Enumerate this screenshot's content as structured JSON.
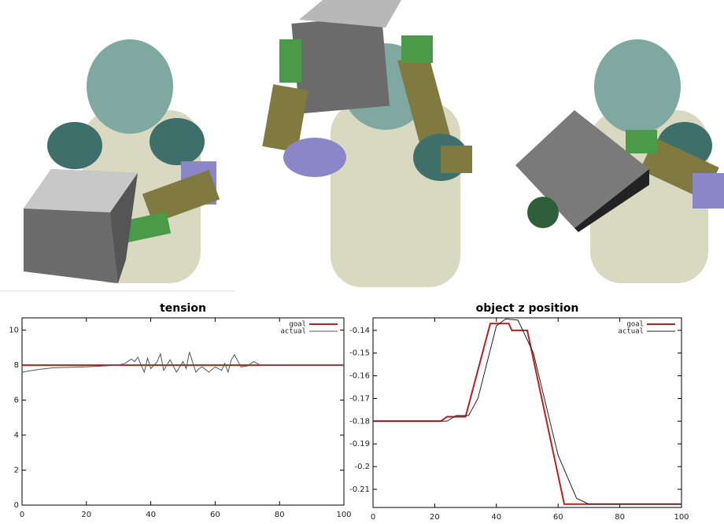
{
  "chart_data": [
    {
      "type": "line",
      "title": "tension",
      "xlim": [
        0,
        100
      ],
      "xticks": [
        0,
        20,
        40,
        60,
        80,
        100
      ],
      "ylim": [
        0,
        10.7
      ],
      "yticks": [
        0,
        2,
        4,
        6,
        8,
        10
      ],
      "grid": false,
      "legend": "upper right",
      "series": [
        {
          "name": "goal",
          "color": "#b22222",
          "x": [
            0,
            100
          ],
          "values": [
            8,
            8
          ]
        },
        {
          "name": "actual",
          "color": "#555555",
          "x": [
            0,
            5,
            10,
            20,
            30,
            32,
            34,
            35,
            36,
            37,
            38,
            39,
            40,
            42,
            43,
            44,
            46,
            48,
            50,
            51,
            52,
            54,
            55,
            56,
            58,
            60,
            62,
            63,
            64,
            65,
            66,
            68,
            70,
            72,
            74,
            76,
            80,
            90,
            100
          ],
          "values": [
            7.6,
            7.75,
            7.85,
            7.9,
            8.0,
            8.1,
            8.35,
            8.2,
            8.45,
            8.0,
            7.6,
            8.4,
            7.8,
            8.2,
            8.65,
            7.7,
            8.3,
            7.6,
            8.2,
            7.8,
            8.75,
            7.6,
            7.8,
            7.9,
            7.6,
            7.9,
            7.7,
            8.1,
            7.6,
            8.3,
            8.6,
            7.9,
            7.95,
            8.2,
            8.0,
            8.0,
            8.0,
            8.0,
            8.0
          ]
        }
      ]
    },
    {
      "type": "line",
      "title": "object z position",
      "xlim": [
        0,
        100
      ],
      "xticks": [
        0,
        20,
        40,
        60,
        80,
        100
      ],
      "ylim": [
        -0.218,
        -0.1345
      ],
      "yticks": [
        -0.14,
        -0.15,
        -0.16,
        -0.17,
        -0.18,
        -0.19,
        -0.2,
        -0.21
      ],
      "grid": false,
      "legend": "upper right",
      "series": [
        {
          "name": "goal",
          "color": "#b22222",
          "x": [
            0,
            22,
            24,
            30,
            38,
            44,
            45,
            50,
            62,
            100
          ],
          "values": [
            -0.18,
            -0.18,
            -0.178,
            -0.178,
            -0.137,
            -0.137,
            -0.14,
            -0.14,
            -0.2165,
            -0.2165
          ]
        },
        {
          "name": "actual",
          "color": "#222222",
          "x": [
            0,
            24,
            27,
            31,
            34,
            40,
            43,
            47,
            52,
            60,
            66,
            70,
            100
          ],
          "values": [
            -0.18,
            -0.18,
            -0.1775,
            -0.1775,
            -0.17,
            -0.138,
            -0.135,
            -0.1355,
            -0.15,
            -0.195,
            -0.214,
            -0.2165,
            -0.2165
          ]
        }
      ]
    }
  ]
}
